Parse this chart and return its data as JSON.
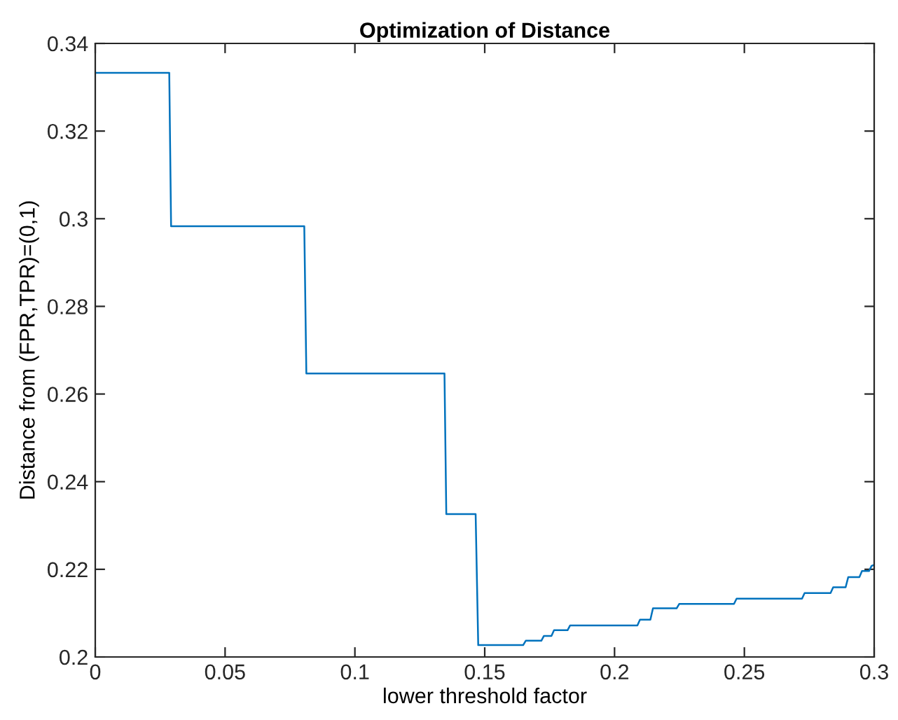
{
  "chart_data": {
    "type": "line",
    "title": "Optimization of Distance",
    "xlabel": "lower threshold factor",
    "ylabel": "Distance from (FPR,TPR)=(0,1)",
    "x": [
      0,
      0.0285,
      0.0292,
      0.0805,
      0.0813,
      0.1345,
      0.1352,
      0.1465,
      0.1475,
      0.1648,
      0.1658,
      0.1718,
      0.1728,
      0.1757,
      0.1767,
      0.1819,
      0.1829,
      0.2088,
      0.2098,
      0.2138,
      0.2148,
      0.2239,
      0.2249,
      0.246,
      0.247,
      0.2722,
      0.2732,
      0.2832,
      0.2842,
      0.289,
      0.29,
      0.2943,
      0.2953,
      0.298,
      0.299,
      0.3
    ],
    "series": [
      {
        "color": "#0072bd",
        "values": [
          0.3333,
          0.3333,
          0.2983,
          0.2983,
          0.2647,
          0.2647,
          0.2326,
          0.2326,
          0.2027,
          0.2027,
          0.2037,
          0.2037,
          0.2048,
          0.2048,
          0.2061,
          0.2061,
          0.2072,
          0.2072,
          0.2085,
          0.2085,
          0.2111,
          0.2111,
          0.2121,
          0.2121,
          0.2133,
          0.2133,
          0.2146,
          0.2146,
          0.2159,
          0.2159,
          0.2182,
          0.2182,
          0.2196,
          0.2196,
          0.2208,
          0.221
        ]
      }
    ],
    "xlim": [
      0,
      0.3
    ],
    "xticks": [
      0,
      0.05,
      0.1,
      0.15,
      0.2,
      0.25,
      0.3
    ],
    "ylim": [
      0.2,
      0.34
    ],
    "yticks": [
      0.2,
      0.22,
      0.24,
      0.26,
      0.28,
      0.3,
      0.32,
      0.34
    ],
    "grid": false,
    "marker": "none",
    "line_style": "solid"
  }
}
